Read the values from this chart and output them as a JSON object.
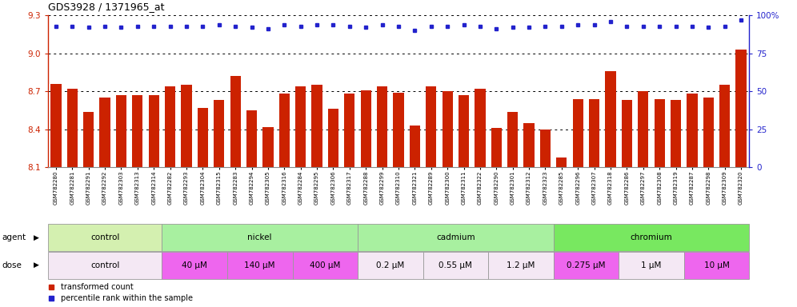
{
  "title": "GDS3928 / 1371965_at",
  "samples": [
    "GSM782280",
    "GSM782281",
    "GSM782291",
    "GSM782292",
    "GSM782303",
    "GSM782313",
    "GSM782314",
    "GSM782282",
    "GSM782293",
    "GSM782304",
    "GSM782315",
    "GSM782283",
    "GSM782294",
    "GSM782305",
    "GSM782316",
    "GSM782284",
    "GSM782295",
    "GSM782306",
    "GSM782317",
    "GSM782288",
    "GSM782299",
    "GSM782310",
    "GSM782321",
    "GSM782289",
    "GSM782300",
    "GSM782311",
    "GSM782322",
    "GSM782290",
    "GSM782301",
    "GSM782312",
    "GSM782323",
    "GSM782285",
    "GSM782296",
    "GSM782307",
    "GSM782318",
    "GSM782286",
    "GSM782297",
    "GSM782308",
    "GSM782319",
    "GSM782287",
    "GSM782298",
    "GSM782309",
    "GSM782320"
  ],
  "bar_values": [
    8.76,
    8.72,
    8.54,
    8.65,
    8.67,
    8.67,
    8.67,
    8.74,
    8.75,
    8.57,
    8.63,
    8.82,
    8.55,
    8.42,
    8.68,
    8.74,
    8.75,
    8.56,
    8.68,
    8.71,
    8.74,
    8.69,
    8.43,
    8.74,
    8.7,
    8.67,
    8.72,
    8.41,
    8.54,
    8.45,
    8.4,
    8.18,
    8.64,
    8.64,
    8.86,
    8.63,
    8.7,
    8.64,
    8.63,
    8.68,
    8.65,
    8.75,
    9.03
  ],
  "percentile_values": [
    93,
    93,
    92,
    93,
    92,
    93,
    93,
    93,
    93,
    93,
    94,
    93,
    92,
    91,
    94,
    93,
    94,
    94,
    93,
    92,
    94,
    93,
    90,
    93,
    93,
    94,
    93,
    91,
    92,
    92,
    93,
    93,
    94,
    94,
    96,
    93,
    93,
    93,
    93,
    93,
    92,
    93,
    97
  ],
  "ylim_left": [
    8.1,
    9.3
  ],
  "ylim_right": [
    0,
    100
  ],
  "yticks_left": [
    8.1,
    8.4,
    8.7,
    9.0,
    9.3
  ],
  "yticks_right": [
    0,
    25,
    50,
    75,
    100
  ],
  "bar_color": "#cc2200",
  "dot_color": "#2222cc",
  "agent_groups": [
    {
      "label": "control",
      "start": 0,
      "end": 7,
      "color": "#d4f0b0"
    },
    {
      "label": "nickel",
      "start": 7,
      "end": 19,
      "color": "#a8f0a0"
    },
    {
      "label": "cadmium",
      "start": 19,
      "end": 31,
      "color": "#a8f0a0"
    },
    {
      "label": "chromium",
      "start": 31,
      "end": 43,
      "color": "#78e860"
    }
  ],
  "dose_groups": [
    {
      "label": "control",
      "start": 0,
      "end": 7,
      "color": "#f4e8f4"
    },
    {
      "label": "40 μM",
      "start": 7,
      "end": 11,
      "color": "#ee66ee"
    },
    {
      "label": "140 μM",
      "start": 11,
      "end": 15,
      "color": "#ee66ee"
    },
    {
      "label": "400 μM",
      "start": 15,
      "end": 19,
      "color": "#ee66ee"
    },
    {
      "label": "0.2 μM",
      "start": 19,
      "end": 23,
      "color": "#f4e8f4"
    },
    {
      "label": "0.55 μM",
      "start": 23,
      "end": 27,
      "color": "#f4e8f4"
    },
    {
      "label": "1.2 μM",
      "start": 27,
      "end": 31,
      "color": "#f4e8f4"
    },
    {
      "label": "0.275 μM",
      "start": 31,
      "end": 35,
      "color": "#ee66ee"
    },
    {
      "label": "1 μM",
      "start": 35,
      "end": 39,
      "color": "#f4e8f4"
    },
    {
      "label": "10 μM",
      "start": 39,
      "end": 43,
      "color": "#ee66ee"
    }
  ],
  "fig_width": 9.96,
  "fig_height": 3.84,
  "dpi": 100
}
